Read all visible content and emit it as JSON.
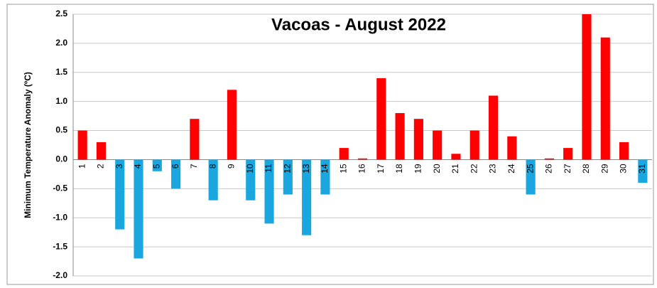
{
  "chart_data": {
    "type": "bar",
    "title": "Vacoas - August 2022",
    "y_label": "Minimum Temperature Anomaly (ºC)",
    "categories": [
      "1",
      "2",
      "3",
      "4",
      "5",
      "6",
      "7",
      "8",
      "9",
      "10",
      "11",
      "12",
      "13",
      "14",
      "15",
      "16",
      "17",
      "18",
      "19",
      "20",
      "21",
      "22",
      "23",
      "24",
      "25",
      "26",
      "27",
      "28",
      "29",
      "30",
      "31"
    ],
    "values": [
      0.5,
      0.3,
      -1.2,
      -1.7,
      -0.2,
      -0.5,
      0.7,
      -0.7,
      1.2,
      -0.7,
      -1.1,
      -0.6,
      -1.3,
      -0.6,
      0.2,
      0.02,
      1.4,
      0.8,
      0.7,
      0.5,
      0.1,
      0.5,
      1.1,
      0.4,
      -0.6,
      0.02,
      0.2,
      2.5,
      2.1,
      0.3,
      -0.4
    ],
    "positive_color": "#ff0000",
    "negative_color": "#1aa7e0",
    "ylim": [
      -2.0,
      2.5
    ],
    "yticks": [
      {
        "value": -2,
        "label": "-2.0"
      },
      -1.5,
      {
        "value": -1,
        "label": "-1.0"
      },
      -0.5,
      {
        "value": 0,
        "label": "0.0"
      },
      0.5,
      {
        "value": 1,
        "label": "1.0"
      },
      1.5,
      {
        "value": 2,
        "label": "2.0"
      },
      2.5
    ],
    "grid": true
  }
}
